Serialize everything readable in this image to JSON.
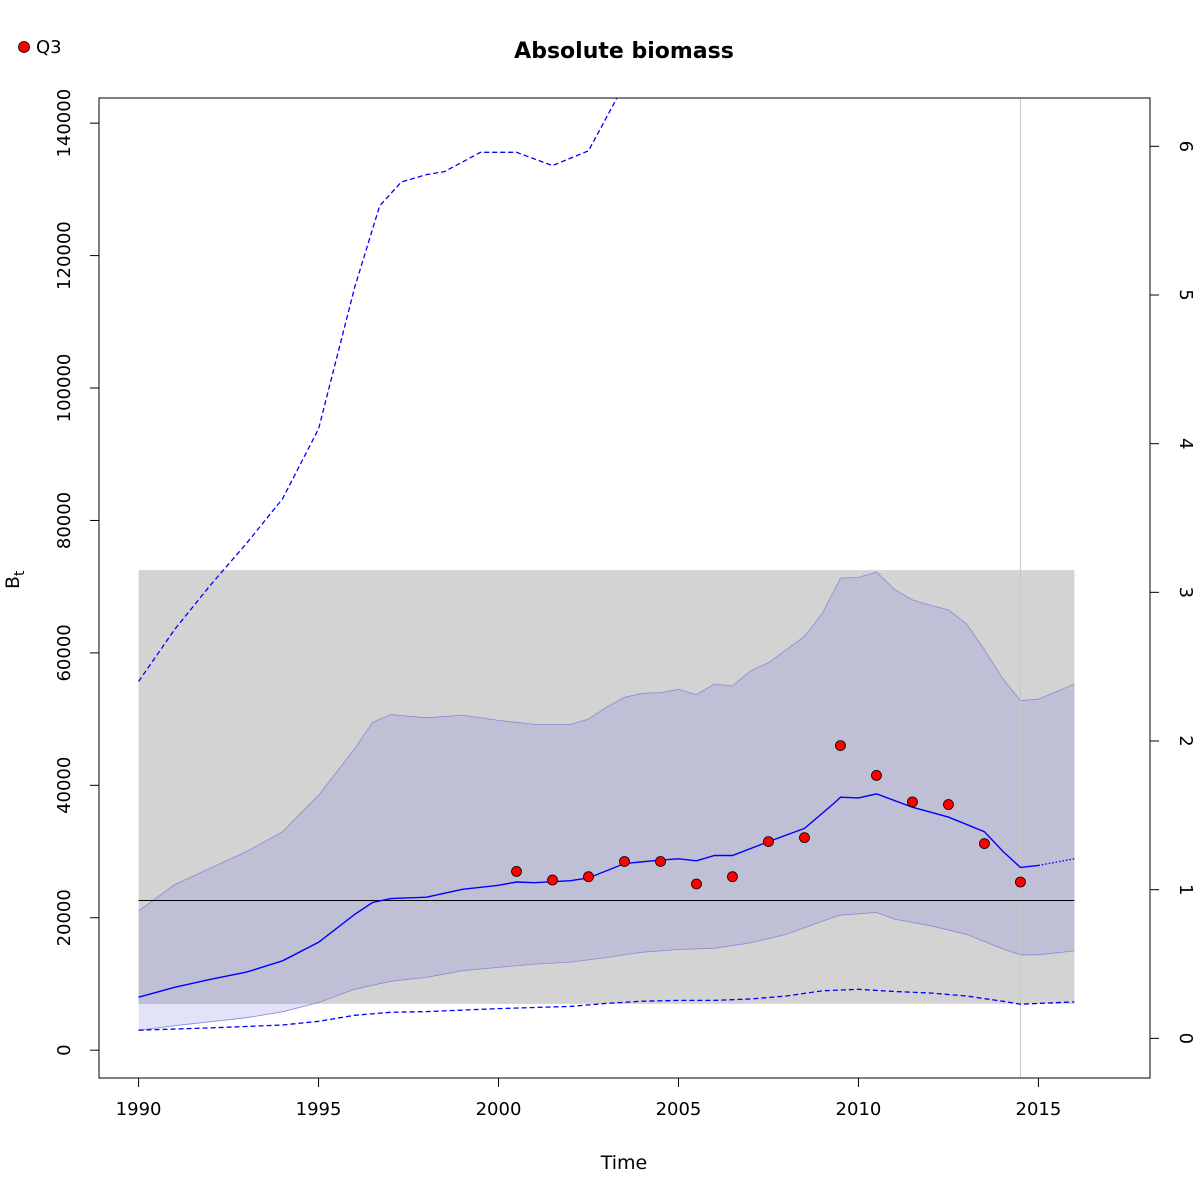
{
  "chart_data": {
    "type": "line",
    "title": "Absolute biomass",
    "xlabel": "Time",
    "ylabel": "B",
    "ylabel_subscript": "t",
    "xlim": [
      1988.9,
      2018.1
    ],
    "ylim": [
      -4200,
      143800
    ],
    "y2lim": [
      -0.2667,
      6.325
    ],
    "xticks": [
      1990,
      1995,
      2000,
      2005,
      2010,
      2015
    ],
    "xtick_labels": [
      "1990",
      "1995",
      "2000",
      "2005",
      "2010",
      "2015"
    ],
    "yticks": [
      0,
      20000,
      40000,
      60000,
      80000,
      100000,
      120000,
      140000
    ],
    "ytick_labels": [
      "0",
      "20000",
      "40000",
      "60000",
      "80000",
      "100000",
      "120000",
      "140000"
    ],
    "y2ticks": [
      0,
      1,
      2,
      3,
      4,
      5,
      6
    ],
    "y2tick_labels": [
      "0",
      "1",
      "2",
      "3",
      "4",
      "5",
      "6"
    ],
    "legend": {
      "position": "top-left",
      "label": "Q3"
    },
    "reference_band": {
      "x": [
        1990,
        2016
      ],
      "y": [
        7000,
        72500
      ]
    },
    "reference_hline": 22600,
    "reference_vline": 2014.5,
    "colors": {
      "estimate": "#0000ff",
      "ci_fill": "#7b7bde",
      "ref_band": "#d3d3d3",
      "points": "#ff0000",
      "vline": "#c8c8c8"
    },
    "series": [
      {
        "name": "Q3",
        "kind": "points",
        "x": [
          2000.5,
          2001.5,
          2002.5,
          2003.5,
          2004.5,
          2005.5,
          2006.5,
          2007.5,
          2008.5,
          2009.5,
          2010.5,
          2011.5,
          2012.5,
          2013.5,
          2014.5
        ],
        "values": [
          27000,
          25700,
          26200,
          28500,
          28500,
          25100,
          26200,
          31500,
          32100,
          46000,
          41500,
          37500,
          37100,
          31200,
          25400
        ]
      },
      {
        "kind": "estimate",
        "x": [
          1990,
          1991,
          1992,
          1993,
          1994,
          1995,
          1996,
          1996.5,
          1997,
          1998,
          1999,
          2000,
          2000.5,
          2001,
          2002,
          2002.5,
          2003.5,
          2004.5,
          2005,
          2005.5,
          2006,
          2006.5,
          2007.5,
          2008.5,
          2009.3,
          2009.5,
          2010,
          2010.5,
          2011.5,
          2012.5,
          2013.5,
          2014,
          2014.5,
          2015
        ],
        "values": [
          8000,
          9500,
          10700,
          11800,
          13500,
          16300,
          20500,
          22300,
          22900,
          23100,
          24300,
          24900,
          25400,
          25300,
          25600,
          26000,
          28200,
          28700,
          28900,
          28600,
          29400,
          29400,
          31500,
          33500,
          37200,
          38200,
          38100,
          38700,
          36700,
          35200,
          33000,
          30100,
          27600,
          27900
        ]
      },
      {
        "kind": "forecast",
        "x": [
          2015,
          2016
        ],
        "values": [
          27900,
          28900
        ]
      },
      {
        "kind": "ci_upper",
        "x": [
          1990,
          1991,
          1992,
          1993,
          1994,
          1995,
          1996,
          1996.5,
          1997,
          1998,
          1999,
          2000,
          2001,
          2002,
          2002.5,
          2003,
          2003.5,
          2004,
          2004.5,
          2005,
          2005.5,
          2006,
          2006.5,
          2007,
          2007.5,
          2008,
          2008.5,
          2009,
          2009.5,
          2010,
          2010.5,
          2011,
          2011.5,
          2012,
          2012.5,
          2013,
          2013.5,
          2014,
          2014.5,
          2015,
          2016
        ],
        "values": [
          21000,
          25000,
          27500,
          30000,
          33000,
          38500,
          45500,
          49500,
          50700,
          50200,
          50600,
          49800,
          49200,
          49200,
          50000,
          51800,
          53300,
          53900,
          54000,
          54500,
          53700,
          55300,
          55000,
          57300,
          58500,
          60500,
          62500,
          66000,
          71300,
          71400,
          72200,
          69600,
          68000,
          67200,
          66500,
          64400,
          60500,
          56200,
          52800,
          53000,
          55300
        ]
      },
      {
        "kind": "ci_lower",
        "x": [
          1990,
          1991,
          1992,
          1993,
          1994,
          1995,
          1996,
          1997,
          1998,
          1999,
          2000,
          2001,
          2002,
          2003,
          2004,
          2005,
          2006,
          2007,
          2008,
          2009,
          2009.5,
          2010,
          2010.5,
          2011,
          2012,
          2013,
          2014,
          2014.5,
          2015,
          2016
        ],
        "values": [
          3000,
          3700,
          4300,
          4900,
          5800,
          7200,
          9200,
          10400,
          11000,
          12000,
          12500,
          13000,
          13300,
          14000,
          14800,
          15200,
          15400,
          16200,
          17500,
          19500,
          20400,
          20600,
          20800,
          19800,
          18800,
          17500,
          15300,
          14400,
          14400,
          15000
        ]
      },
      {
        "kind": "secondary_upper",
        "x": [
          1990,
          1991,
          1992,
          1993,
          1994,
          1995,
          1996,
          1996.7,
          1997.3,
          1998,
          1998.5,
          1999.5,
          2000.5,
          2001.5,
          2002.5,
          2003.3
        ],
        "values": [
          2.4,
          2.75,
          3.05,
          3.33,
          3.63,
          4.1,
          5.05,
          5.6,
          5.76,
          5.81,
          5.83,
          5.96,
          5.96,
          5.87,
          5.97,
          6.33
        ]
      },
      {
        "kind": "secondary_lower",
        "x": [
          1990,
          1992,
          1994,
          1995,
          1996,
          1997,
          1998,
          2000,
          2002,
          2003,
          2004,
          2005,
          2006,
          2007,
          2008,
          2009,
          2010,
          2011,
          2012,
          2013,
          2014,
          2014.5,
          2015,
          2016
        ],
        "values": [
          0.055,
          0.07,
          0.09,
          0.115,
          0.155,
          0.175,
          0.18,
          0.2,
          0.215,
          0.235,
          0.25,
          0.255,
          0.255,
          0.265,
          0.285,
          0.32,
          0.33,
          0.315,
          0.305,
          0.285,
          0.25,
          0.23,
          0.235,
          0.245
        ]
      }
    ]
  }
}
